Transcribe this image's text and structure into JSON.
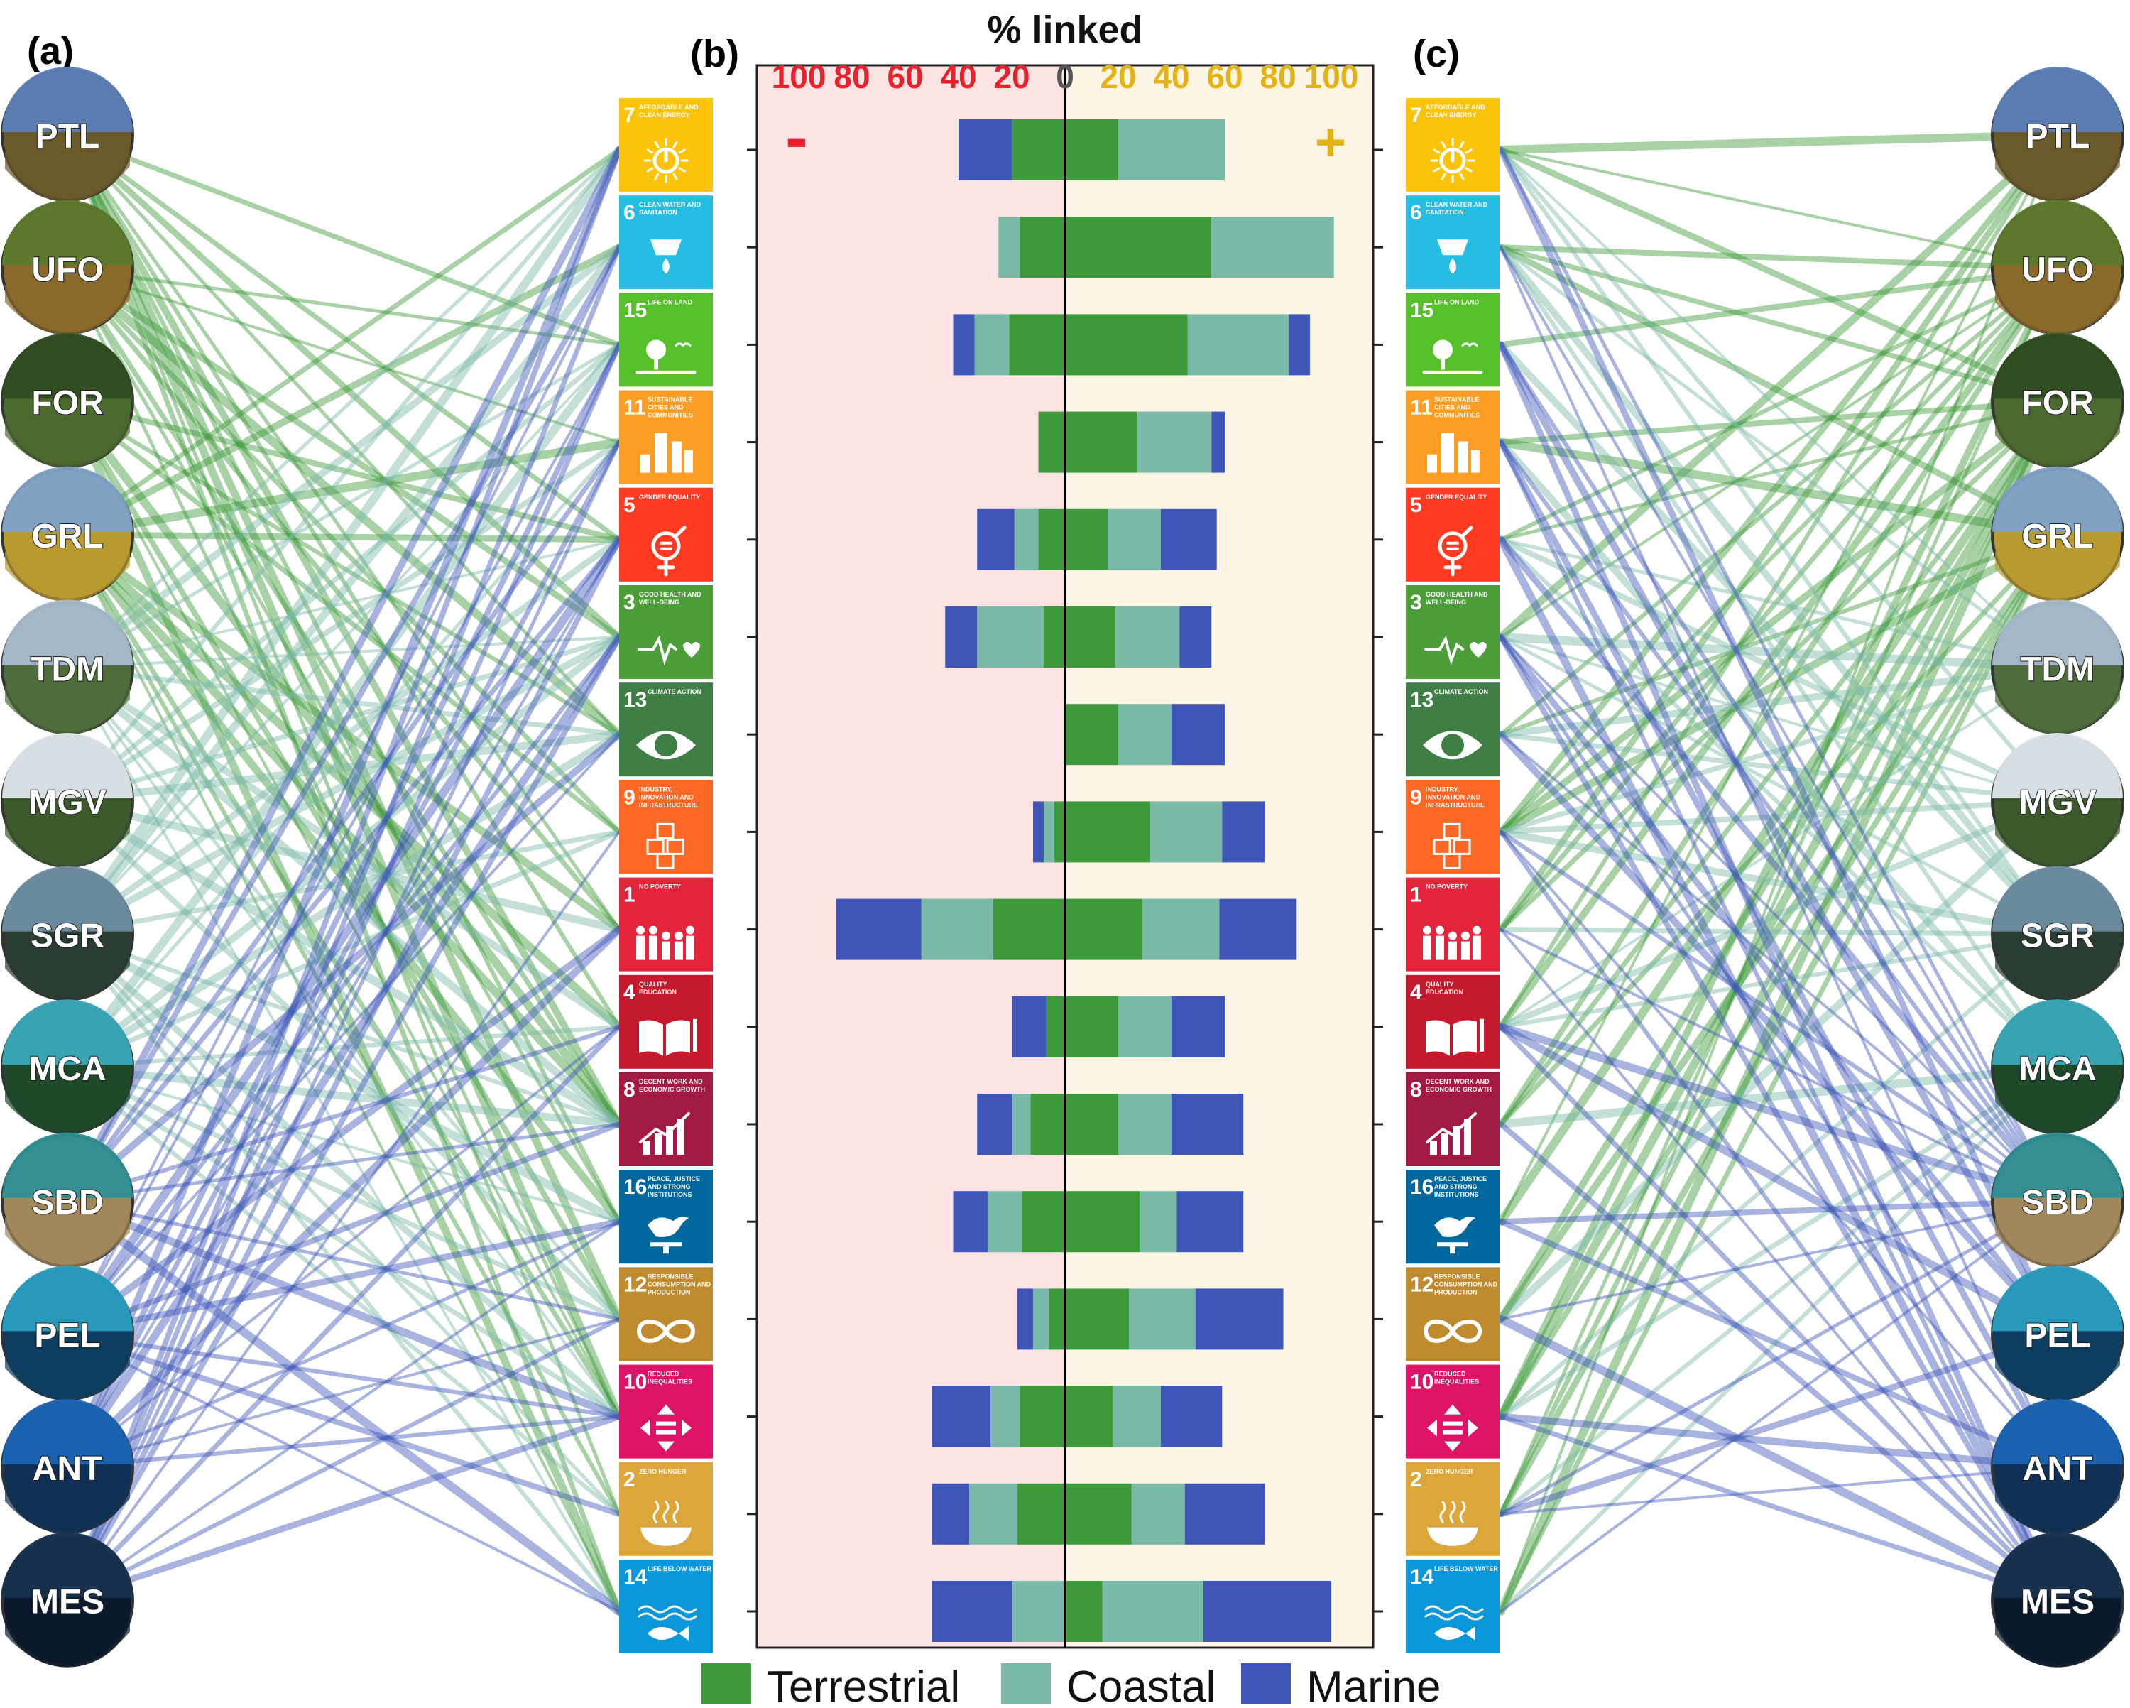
{
  "panel_labels": {
    "a": "(a)",
    "b": "(b)",
    "c": "(c)"
  },
  "colors": {
    "terrestrial": "#3d9a3a",
    "coastal": "#7ab8a8",
    "marine": "#3f56b8",
    "neg_bg": "#fde3e4",
    "pos_bg": "#fdf5e4",
    "neg_text": "#e8222b",
    "pos_text": "#e2b216"
  },
  "chart_data": {
    "type": "bar",
    "subtype": "diverging stacked horizontal bar",
    "xlabel": "% linked",
    "xlim": [
      -100,
      100
    ],
    "neg_ticks": [
      "100",
      "80",
      "60",
      "40",
      "20"
    ],
    "zero_tick": "0",
    "pos_ticks": [
      "20",
      "40",
      "60",
      "80",
      "100"
    ],
    "neg_symbol": "-",
    "pos_symbol": "+",
    "legend": [
      "Terrestrial",
      "Coastal",
      "Marine"
    ],
    "legend_position": "bottom",
    "categories": [
      "7",
      "6",
      "15",
      "11",
      "5",
      "3",
      "13",
      "9",
      "1",
      "4",
      "8",
      "16",
      "12",
      "10",
      "2",
      "14"
    ],
    "negative": {
      "terrestrial": [
        20,
        17,
        21,
        10,
        10,
        8,
        0,
        4,
        27,
        7,
        13,
        16,
        6,
        17,
        18,
        0
      ],
      "coastal": [
        0,
        8,
        13,
        0,
        9,
        25,
        0,
        4,
        27,
        0,
        7,
        13,
        6,
        11,
        18,
        20
      ],
      "marine": [
        20,
        0,
        8,
        0,
        14,
        12,
        0,
        4,
        32,
        13,
        13,
        13,
        6,
        22,
        14,
        30
      ]
    },
    "positive": {
      "terrestrial": [
        20,
        55,
        46,
        27,
        16,
        19,
        20,
        32,
        29,
        20,
        20,
        28,
        24,
        18,
        25,
        14
      ],
      "coastal": [
        40,
        46,
        38,
        28,
        20,
        24,
        20,
        27,
        29,
        20,
        20,
        14,
        25,
        18,
        20,
        38
      ],
      "marine": [
        0,
        0,
        8,
        5,
        21,
        12,
        20,
        16,
        29,
        20,
        27,
        25,
        33,
        23,
        30,
        48
      ]
    }
  },
  "sdgs": [
    {
      "num": "7",
      "title": "AFFORDABLE AND CLEAN ENERGY",
      "color": "#FCC30B",
      "icon": "sun-power-icon"
    },
    {
      "num": "6",
      "title": "CLEAN WATER AND SANITATION",
      "color": "#26BDE2",
      "icon": "water-drop-icon"
    },
    {
      "num": "15",
      "title": "LIFE ON LAND",
      "color": "#56C02B",
      "icon": "tree-birds-icon"
    },
    {
      "num": "11",
      "title": "SUSTAINABLE CITIES AND COMMUNITIES",
      "color": "#FD9D24",
      "icon": "city-icon"
    },
    {
      "num": "5",
      "title": "GENDER EQUALITY",
      "color": "#FF3A21",
      "icon": "gender-equality-icon"
    },
    {
      "num": "3",
      "title": "GOOD HEALTH AND WELL-BEING",
      "color": "#4C9F38",
      "icon": "heartbeat-icon"
    },
    {
      "num": "13",
      "title": "CLIMATE ACTION",
      "color": "#3F7E44",
      "icon": "eye-globe-icon"
    },
    {
      "num": "9",
      "title": "INDUSTRY, INNOVATION AND INFRASTRUCTURE",
      "color": "#FD6925",
      "icon": "cubes-icon"
    },
    {
      "num": "1",
      "title": "NO POVERTY",
      "color": "#E5243B",
      "icon": "family-icon"
    },
    {
      "num": "4",
      "title": "QUALITY EDUCATION",
      "color": "#C5192D",
      "icon": "book-pencil-icon"
    },
    {
      "num": "8",
      "title": "DECENT WORK AND ECONOMIC GROWTH",
      "color": "#A21942",
      "icon": "growth-chart-icon"
    },
    {
      "num": "16",
      "title": "PEACE, JUSTICE AND STRONG INSTITUTIONS",
      "color": "#00689D",
      "icon": "dove-gavel-icon"
    },
    {
      "num": "12",
      "title": "RESPONSIBLE CONSUMPTION AND PRODUCTION",
      "color": "#BF8B2E",
      "icon": "infinity-icon"
    },
    {
      "num": "10",
      "title": "REDUCED INEQUALITIES",
      "color": "#DD1367",
      "icon": "equality-arrows-icon"
    },
    {
      "num": "2",
      "title": "ZERO HUNGER",
      "color": "#DDA63A",
      "icon": "bowl-icon"
    },
    {
      "num": "14",
      "title": "LIFE BELOW WATER",
      "color": "#0A97D9",
      "icon": "fish-waves-icon"
    }
  ],
  "ecosystems": [
    {
      "code": "PTL",
      "group": "terrestrial",
      "bg1": "#5b7fb8",
      "bg2": "#6b5a2a"
    },
    {
      "code": "UFO",
      "group": "terrestrial",
      "bg1": "#5c7a2c",
      "bg2": "#8a6a2a"
    },
    {
      "code": "FOR",
      "group": "terrestrial",
      "bg1": "#2f4d22",
      "bg2": "#4b6a2f"
    },
    {
      "code": "GRL",
      "group": "terrestrial",
      "bg1": "#7fa2c9",
      "bg2": "#b99a2f"
    },
    {
      "code": "TDM",
      "group": "coastal",
      "bg1": "#a8bccd",
      "bg2": "#4f6d3a"
    },
    {
      "code": "MGV",
      "group": "coastal",
      "bg1": "#dfe7ee",
      "bg2": "#3c5a2c"
    },
    {
      "code": "SGR",
      "group": "coastal",
      "bg1": "#6e8ea4",
      "bg2": "#2a3d32"
    },
    {
      "code": "MCA",
      "group": "coastal",
      "bg1": "#3aa8b8",
      "bg2": "#1e4a2a"
    },
    {
      "code": "SBD",
      "group": "marine",
      "bg1": "#2f8f96",
      "bg2": "#a1885a"
    },
    {
      "code": "PEL",
      "group": "marine",
      "bg1": "#2a9ec0",
      "bg2": "#0d3e62"
    },
    {
      "code": "ANT",
      "group": "marine",
      "bg1": "#1b64b4",
      "bg2": "#0e3054"
    },
    {
      "code": "MES",
      "group": "marine",
      "bg1": "#17324e",
      "bg2": "#0a1a2c"
    }
  ]
}
